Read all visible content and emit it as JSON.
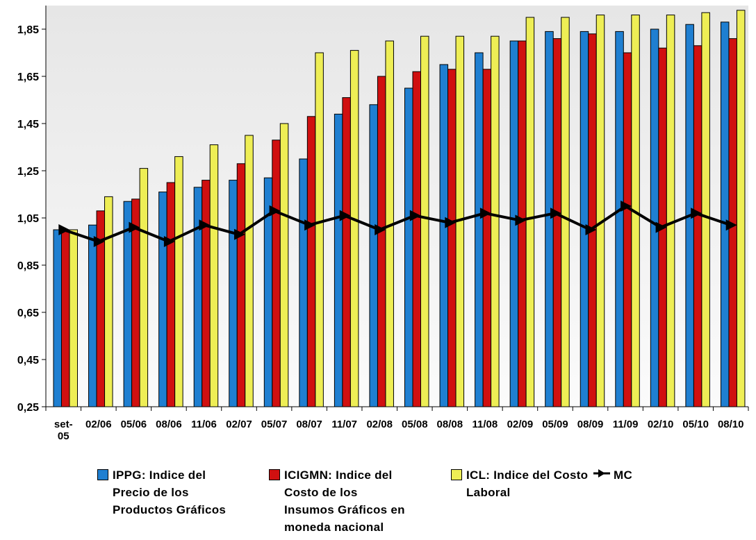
{
  "chart_data": {
    "type": "bar",
    "categories": [
      "set-\n05",
      "02/06",
      "05/06",
      "08/06",
      "11/06",
      "02/07",
      "05/07",
      "08/07",
      "11/07",
      "02/08",
      "05/08",
      "08/08",
      "11/08",
      "02/09",
      "05/09",
      "08/09",
      "11/09",
      "02/10",
      "05/10",
      "08/10"
    ],
    "ylim": [
      0.25,
      1.95
    ],
    "yticks": [
      "0,25",
      "0,45",
      "0,65",
      "0,85",
      "1,05",
      "1,25",
      "1,45",
      "1,65",
      "1,85"
    ],
    "ytick_values": [
      0.25,
      0.45,
      0.65,
      0.85,
      1.05,
      1.25,
      1.45,
      1.65,
      1.85
    ],
    "grid": false,
    "legend_position": "bottom",
    "series": [
      {
        "name": "IPPG: Indice del Precio de los Productos Gráficos",
        "type": "bar",
        "color": "#1f7fd1",
        "values": [
          1.0,
          1.02,
          1.12,
          1.16,
          1.18,
          1.21,
          1.22,
          1.3,
          1.49,
          1.53,
          1.6,
          1.7,
          1.75,
          1.8,
          1.84,
          1.84,
          1.84,
          1.85,
          1.87,
          1.88
        ]
      },
      {
        "name": "ICIGMN: Indice del Costo de los Insumos Gráficos en moneda nacional",
        "type": "bar",
        "color": "#d01010",
        "values": [
          1.0,
          1.08,
          1.13,
          1.2,
          1.21,
          1.28,
          1.38,
          1.48,
          1.56,
          1.65,
          1.67,
          1.68,
          1.68,
          1.8,
          1.81,
          1.83,
          1.75,
          1.77,
          1.78,
          1.81
        ]
      },
      {
        "name": "ICL: Indice del Costo Laboral",
        "type": "bar",
        "color": "#eeee55",
        "values": [
          1.0,
          1.14,
          1.26,
          1.31,
          1.36,
          1.4,
          1.45,
          1.75,
          1.76,
          1.8,
          1.82,
          1.82,
          1.82,
          1.9,
          1.9,
          1.91,
          1.91,
          1.91,
          1.92,
          1.93
        ]
      },
      {
        "name": "MC",
        "type": "line",
        "color": "#000000",
        "values": [
          1.0,
          0.95,
          1.01,
          0.95,
          1.02,
          0.98,
          1.08,
          1.02,
          1.06,
          1.0,
          1.06,
          1.03,
          1.07,
          1.04,
          1.07,
          1.0,
          1.1,
          1.01,
          1.07,
          1.02
        ]
      }
    ]
  },
  "legend": [
    {
      "lines": [
        "IPPG: Indice del",
        "Precio de los",
        "Productos Gráficos"
      ],
      "color": "#1f7fd1"
    },
    {
      "lines": [
        "ICIGMN: Indice del",
        "Costo de los",
        "Insumos Gráficos en",
        "moneda nacional"
      ],
      "color": "#d01010"
    },
    {
      "lines": [
        "ICL: Indice del Costo",
        "Laboral"
      ],
      "color": "#eeee55"
    },
    {
      "lines": [
        "MC"
      ],
      "color": "#000000"
    }
  ]
}
